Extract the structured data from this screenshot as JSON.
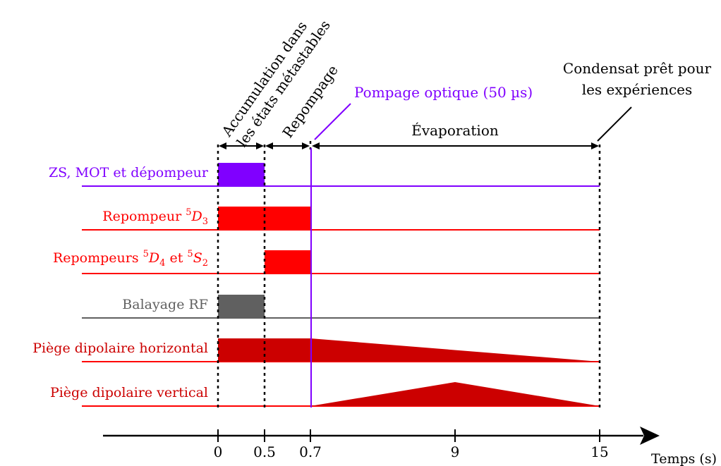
{
  "colors": {
    "purple": "#8000ff",
    "red": "#ff0000",
    "darkred": "#cc0000",
    "gray": "#606060",
    "black": "#000000"
  },
  "channels": [
    {
      "key": "zs",
      "label": "ZS, MOT et dépompeur",
      "color": "#8000ff"
    },
    {
      "key": "rep5d3",
      "label_main": "Repompeur ",
      "label_sup": "5",
      "label_var": "D",
      "label_sub": "3",
      "color": "#ff0000"
    },
    {
      "key": "rep5d4",
      "label_main": "Repompeurs ",
      "label_sup1": "5",
      "label_var1": "D",
      "label_sub1": "4",
      "label_mid": " et ",
      "label_sup2": "5",
      "label_var2": "S",
      "label_sub2": "2",
      "color": "#ff0000"
    },
    {
      "key": "rf",
      "label": "Balayage RF",
      "color": "#606060"
    },
    {
      "key": "dph",
      "label": "Piège dipolaire horizontal",
      "color": "#cc0000"
    },
    {
      "key": "dpv",
      "label": "Piège dipolaire vertical",
      "color": "#cc0000"
    }
  ],
  "phases": {
    "accumulation_line1": "Accumulation dans",
    "accumulation_line2": "les états métastables",
    "repompage": "Repompage",
    "pompage": "Pompage optique (50 µs)",
    "evaporation": "Évaporation",
    "condensat_line1": "Condensat prêt pour",
    "condensat_line2": "les expériences"
  },
  "axis": {
    "label": "Temps (s)",
    "ticks": [
      "0",
      "0.5",
      "0.7",
      "9",
      "15"
    ]
  }
}
